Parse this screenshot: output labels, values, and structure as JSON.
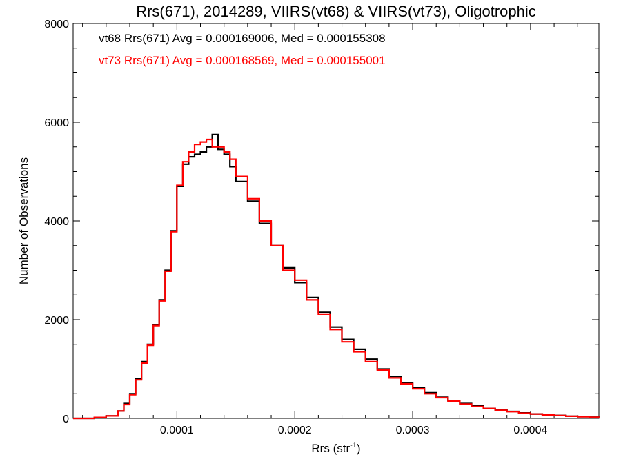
{
  "chart_data": {
    "type": "line",
    "title": "Rrs(671), 2014289, VIIRS(vt68) & VIIRS(vt73), Oligotrophic",
    "xlabel_main": "Rrs (str",
    "xlabel_sup": "-1",
    "xlabel_close": ")",
    "ylabel": "Number of Observations",
    "xlim": [
      1.2e-05,
      0.000458
    ],
    "ylim": [
      0,
      8000
    ],
    "x_ticks": [
      0.0001,
      0.0002,
      0.0003,
      0.0004
    ],
    "x_tick_labels": [
      "0.0001",
      "0.0002",
      "0.0003",
      "0.0004"
    ],
    "y_ticks": [
      0,
      2000,
      4000,
      6000,
      8000
    ],
    "y_tick_labels": [
      "0",
      "2000",
      "4000",
      "6000",
      "8000"
    ],
    "grid": false,
    "legend_placement": "top-left",
    "series": [
      {
        "name": "vt68 Rrs(671) Avg = 0.000169006, Med = 0.000155308",
        "color": "#000000",
        "x": [
          1.2e-05,
          3e-05,
          4e-05,
          5e-05,
          5.5e-05,
          6e-05,
          6.5e-05,
          7e-05,
          7.5e-05,
          8e-05,
          8.5e-05,
          9e-05,
          9.5e-05,
          0.0001,
          0.000105,
          0.00011,
          0.000115,
          0.00012,
          0.000125,
          0.00013,
          0.000135,
          0.00014,
          0.000145,
          0.00015,
          0.00016,
          0.00017,
          0.00018,
          0.00019,
          0.0002,
          0.00021,
          0.00022,
          0.00023,
          0.00024,
          0.00025,
          0.00026,
          0.00027,
          0.00028,
          0.00029,
          0.0003,
          0.00031,
          0.00032,
          0.00033,
          0.00034,
          0.00035,
          0.00036,
          0.00037,
          0.00038,
          0.00039,
          0.0004,
          0.00041,
          0.00042,
          0.00043,
          0.00044,
          0.00045,
          0.000458
        ],
        "y": [
          0,
          20,
          50,
          150,
          300,
          500,
          800,
          1150,
          1500,
          1900,
          2400,
          3000,
          3800,
          4700,
          5150,
          5300,
          5350,
          5400,
          5500,
          5750,
          5450,
          5350,
          5100,
          4800,
          4400,
          3950,
          3500,
          3050,
          2750,
          2450,
          2150,
          1850,
          1600,
          1400,
          1200,
          1000,
          850,
          720,
          620,
          520,
          430,
          360,
          300,
          250,
          200,
          170,
          140,
          110,
          90,
          75,
          60,
          45,
          35,
          25,
          20
        ]
      },
      {
        "name": "vt73 Rrs(671) Avg = 0.000168569, Med = 0.000155001",
        "color": "#ff0000",
        "x": [
          1.2e-05,
          3e-05,
          4e-05,
          5e-05,
          5.5e-05,
          6e-05,
          6.5e-05,
          7e-05,
          7.5e-05,
          8e-05,
          8.5e-05,
          9e-05,
          9.5e-05,
          0.0001,
          0.000105,
          0.00011,
          0.000115,
          0.00012,
          0.000125,
          0.00013,
          0.000135,
          0.00014,
          0.000145,
          0.00015,
          0.00016,
          0.00017,
          0.00018,
          0.00019,
          0.0002,
          0.00021,
          0.00022,
          0.00023,
          0.00024,
          0.00025,
          0.00026,
          0.00027,
          0.00028,
          0.00029,
          0.0003,
          0.00031,
          0.00032,
          0.00033,
          0.00034,
          0.00035,
          0.00036,
          0.00037,
          0.00038,
          0.00039,
          0.0004,
          0.00041,
          0.00042,
          0.00043,
          0.00044,
          0.00045,
          0.000458
        ],
        "y": [
          0,
          20,
          50,
          150,
          280,
          480,
          780,
          1120,
          1480,
          1880,
          2380,
          2980,
          3780,
          4720,
          5200,
          5400,
          5550,
          5600,
          5650,
          5500,
          5500,
          5400,
          5250,
          4900,
          4450,
          4000,
          3500,
          3000,
          2800,
          2400,
          2100,
          1800,
          1550,
          1350,
          1150,
          980,
          820,
          700,
          600,
          500,
          420,
          350,
          290,
          240,
          200,
          165,
          135,
          105,
          88,
          72,
          58,
          44,
          34,
          24,
          20
        ]
      }
    ]
  }
}
